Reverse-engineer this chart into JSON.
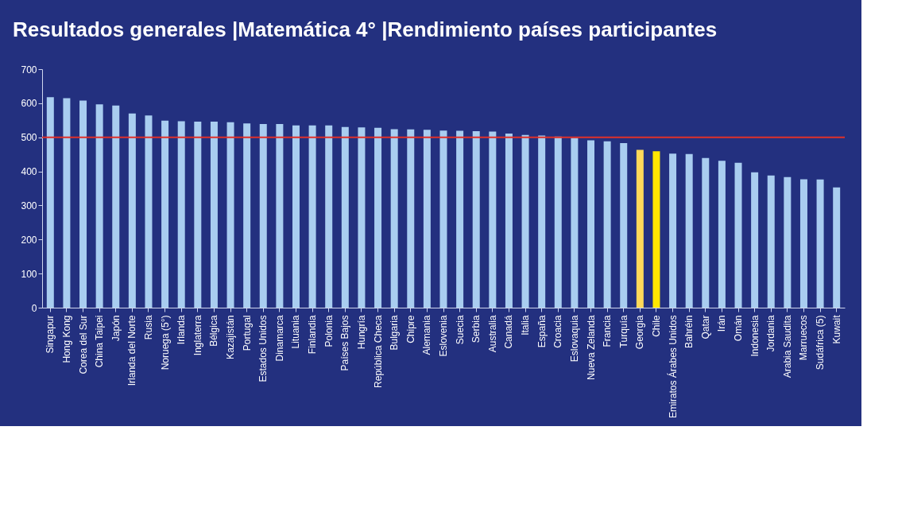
{
  "chart_data": {
    "type": "bar",
    "title": "Resultados generales |Matemática 4° |Rendimiento países participantes",
    "categories": [
      "Singapur",
      "Hong Kong",
      "Corea del Sur",
      "China Taipei",
      "Japón",
      "Irlanda del Norte",
      "Rusia",
      "Noruega (5°)",
      "Irlanda",
      "Inglaterra",
      "Bélgica",
      "Kazajistán",
      "Portugal",
      "Estados Unidos",
      "Dinamarca",
      "Lituania",
      "Finlandia",
      "Polonia",
      "Países Bajos",
      "Hungría",
      "República Checa",
      "Bulgaria",
      "Chipre",
      "Alemania",
      "Eslovenia",
      "Suecia",
      "Serbia",
      "Australia",
      "Canadá",
      "Italia",
      "España",
      "Croacia",
      "Eslovaquia",
      "Nueva Zelanda",
      "Francia",
      "Turquía",
      "Georgia",
      "Chile",
      "Emiratos Árabes Unidos",
      "Bahréin",
      "Qatar",
      "Irán",
      "Omán",
      "Indonesia",
      "Jordania",
      "Arabia Saudita",
      "Marruecos",
      "Sudáfrica (5)",
      "Kuwait"
    ],
    "values": [
      618,
      615,
      608,
      597,
      593,
      570,
      564,
      549,
      547,
      546,
      546,
      544,
      541,
      539,
      539,
      535,
      535,
      535,
      530,
      529,
      528,
      524,
      523,
      522,
      520,
      519,
      518,
      517,
      511,
      507,
      505,
      502,
      498,
      491,
      488,
      483,
      463,
      459,
      452,
      451,
      439,
      431,
      425,
      397,
      388,
      383,
      377,
      376,
      353
    ],
    "colors": [
      "#a9cdf0",
      "#a9cdf0",
      "#a9cdf0",
      "#a9cdf0",
      "#a9cdf0",
      "#a9cdf0",
      "#a9cdf0",
      "#a9cdf0",
      "#a9cdf0",
      "#a9cdf0",
      "#a9cdf0",
      "#a9cdf0",
      "#a9cdf0",
      "#a9cdf0",
      "#a9cdf0",
      "#a9cdf0",
      "#a9cdf0",
      "#a9cdf0",
      "#a9cdf0",
      "#a9cdf0",
      "#a9cdf0",
      "#a9cdf0",
      "#a9cdf0",
      "#a9cdf0",
      "#a9cdf0",
      "#a9cdf0",
      "#a9cdf0",
      "#a9cdf0",
      "#a9cdf0",
      "#a9cdf0",
      "#a9cdf0",
      "#a9cdf0",
      "#a9cdf0",
      "#a9cdf0",
      "#a9cdf0",
      "#a9cdf0",
      "#ffd95a",
      "#ffe600",
      "#a9cdf0",
      "#a9cdf0",
      "#a9cdf0",
      "#a9cdf0",
      "#a9cdf0",
      "#a9cdf0",
      "#a9cdf0",
      "#a9cdf0",
      "#a9cdf0",
      "#a9cdf0",
      "#a9cdf0"
    ],
    "ylim": [
      0,
      700
    ],
    "yticks": [
      0,
      100,
      200,
      300,
      400,
      500,
      600,
      700
    ],
    "grid": false,
    "ref_lines": [
      {
        "axis": "y",
        "value": 500,
        "color": "#e0302a"
      }
    ]
  }
}
